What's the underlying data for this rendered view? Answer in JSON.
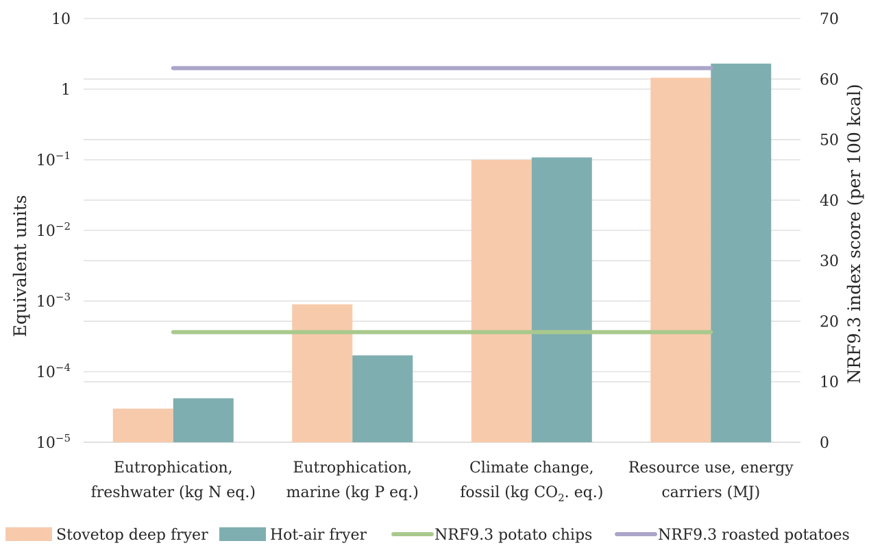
{
  "chart_data": {
    "type": "bar",
    "categories": [
      [
        "Eutrophication,",
        "freshwater (kg N eq.)"
      ],
      [
        "Eutrophication,",
        "marine (kg P eq.)"
      ],
      [
        "Climate change,",
        "fossil (kg CO2. eq.)"
      ],
      [
        "Resource use, energy",
        "carriers (MJ)"
      ]
    ],
    "ylabel": "Equivalent units",
    "y2label": "NRF9.3 index score (per 100 kcal)",
    "yscale": "log",
    "ylim": [
      1e-05,
      10
    ],
    "y_ticks": [
      {
        "value": 10,
        "label": "10"
      },
      {
        "value": 1,
        "label": "1"
      },
      {
        "value": 0.1,
        "base": "10",
        "exp": "−1"
      },
      {
        "value": 0.01,
        "base": "10",
        "exp": "−2"
      },
      {
        "value": 0.001,
        "base": "10",
        "exp": "−3"
      },
      {
        "value": 0.0001,
        "base": "10",
        "exp": "−4"
      },
      {
        "value": 1e-05,
        "base": "10",
        "exp": "−5"
      }
    ],
    "y2lim": [
      0,
      70
    ],
    "y2_ticks": [
      0,
      10,
      20,
      30,
      40,
      50,
      60,
      70
    ],
    "grid": true,
    "legend_position": "bottom",
    "series": [
      {
        "name": "Stovetop deep fryer",
        "kind": "bar",
        "axis": "left",
        "color": "#f7caac",
        "values": [
          3e-05,
          0.0009,
          0.1,
          1.45
        ]
      },
      {
        "name": "Hot-air fryer",
        "kind": "bar",
        "axis": "left",
        "color": "#7faeb0",
        "values": [
          4.2e-05,
          0.00017,
          0.108,
          2.3
        ]
      },
      {
        "name": "NRF9.3 potato chips",
        "kind": "line",
        "axis": "right",
        "color": "#a9c98c",
        "value": 18.2
      },
      {
        "name": "NRF9.3 roasted potatoes",
        "kind": "line",
        "axis": "right",
        "color": "#aba5c9",
        "value": 61.8
      }
    ]
  }
}
